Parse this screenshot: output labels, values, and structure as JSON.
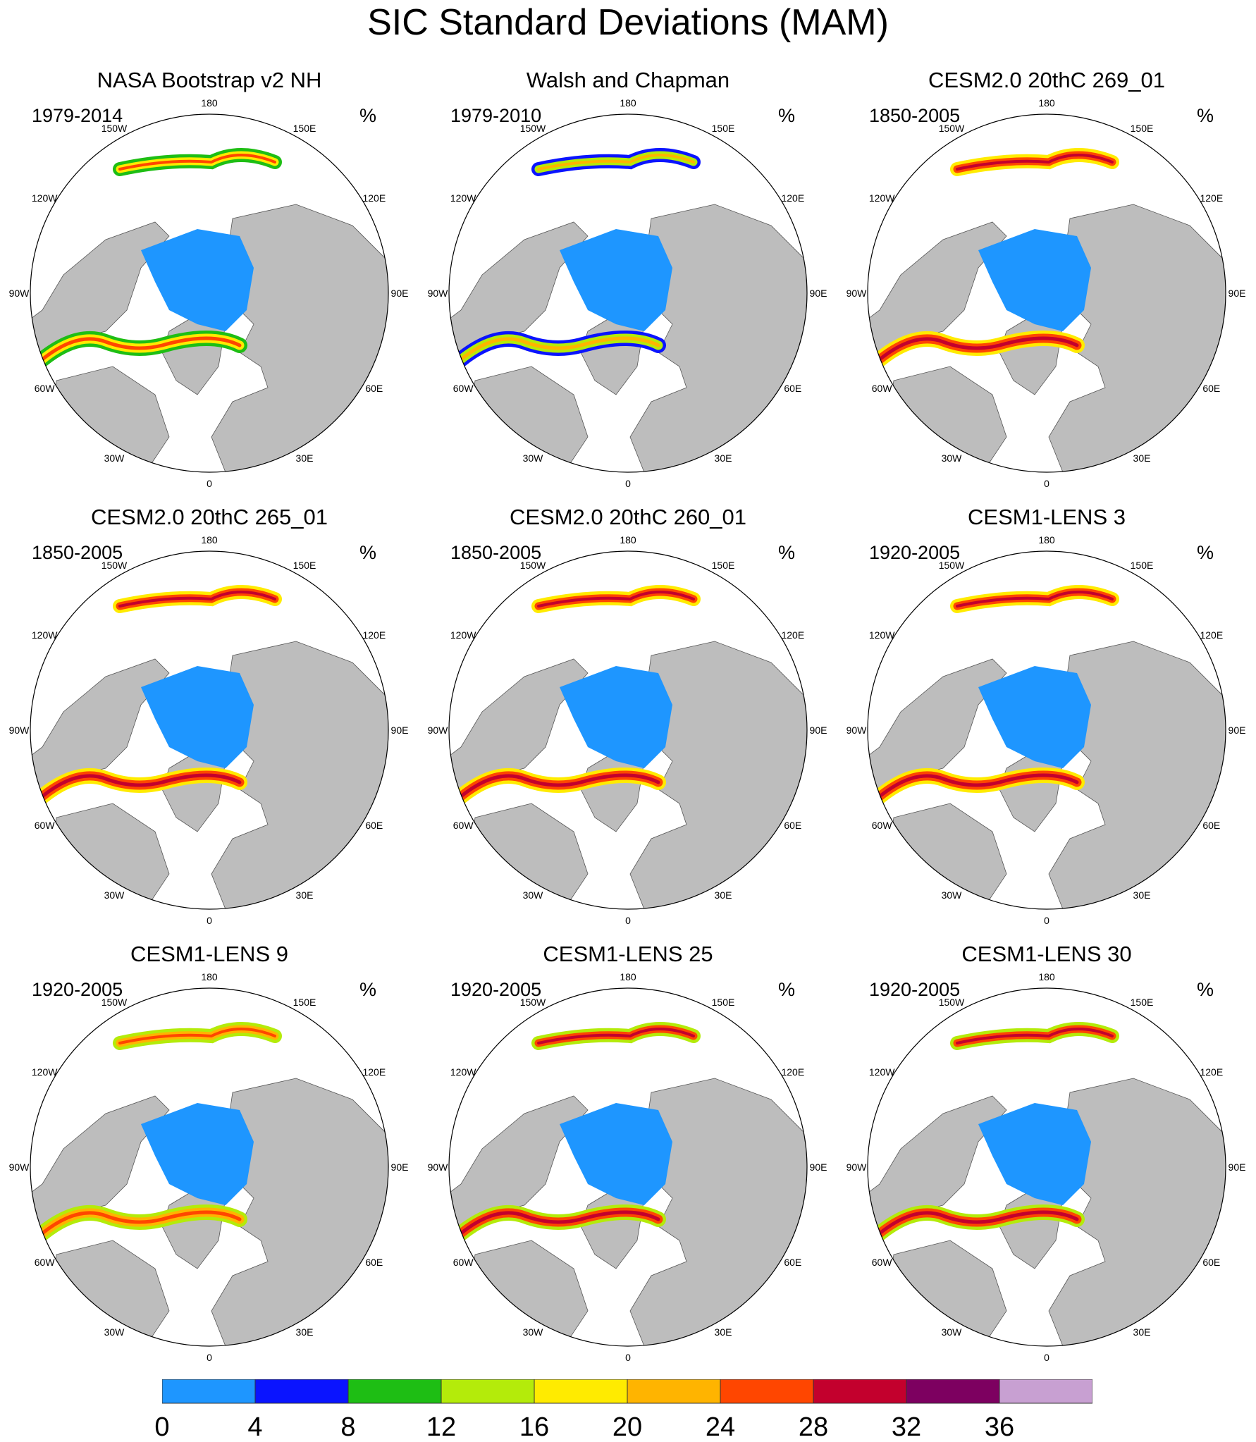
{
  "title": "SIC Standard Deviations (MAM)",
  "unit": "%",
  "panels": [
    {
      "title": "NASA Bootstrap v2 NH",
      "years": "1979-2014"
    },
    {
      "title": "Walsh and Chapman",
      "years": "1979-2010"
    },
    {
      "title": "CESM2.0 20thC 269_01",
      "years": "1850-2005"
    },
    {
      "title": "CESM2.0 20thC 265_01",
      "years": "1850-2005"
    },
    {
      "title": "CESM2.0 20thC 260_01",
      "years": "1850-2005"
    },
    {
      "title": "CESM1-LENS 3",
      "years": "1920-2005"
    },
    {
      "title": "CESM1-LENS 9",
      "years": "1920-2005"
    },
    {
      "title": "CESM1-LENS 25",
      "years": "1920-2005"
    },
    {
      "title": "CESM1-LENS 30",
      "years": "1920-2005"
    }
  ],
  "longitude_labels": [
    "180",
    "150E",
    "120E",
    "90E",
    "60E",
    "30E",
    "0",
    "30W",
    "60W",
    "90W",
    "120W",
    "150W"
  ],
  "colorbar": {
    "labels": [
      "0",
      "4",
      "8",
      "12",
      "16",
      "20",
      "24",
      "28",
      "32",
      "36"
    ],
    "colors": [
      "#1e96ff",
      "#0a14ff",
      "#1ebe14",
      "#b4eb0a",
      "#ffeb00",
      "#ffb400",
      "#ff4600",
      "#c3002d",
      "#7d0060",
      "#c8a0d2"
    ]
  },
  "map_colors": {
    "land": "#bdbdbd",
    "ocean": "#ffffff",
    "ice": "#1e96ff"
  }
}
